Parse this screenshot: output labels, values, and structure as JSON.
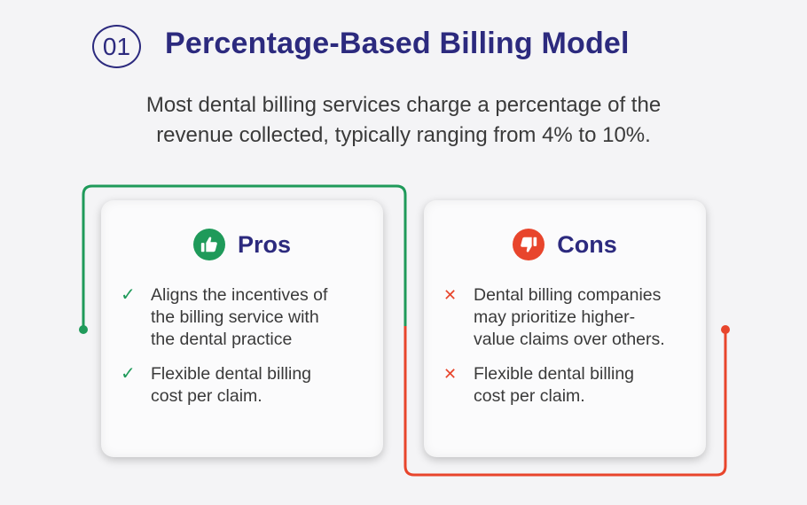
{
  "header": {
    "number": "01",
    "title": "Percentage-Based Billing Model"
  },
  "intro": {
    "line1": "Most dental billing services charge a percentage of the",
    "line2": "revenue collected, typically ranging from 4% to 10%."
  },
  "pros": {
    "label": "Pros",
    "icon": "thumbs-up-icon",
    "items": [
      [
        "Aligns the incentives of",
        "the billing service with",
        "the dental practice"
      ],
      [
        "Flexible dental billing",
        "cost per claim."
      ]
    ]
  },
  "cons": {
    "label": "Cons",
    "icon": "thumbs-down-icon",
    "items": [
      [
        "Dental billing companies",
        "may prioritize higher-",
        "value claims over others."
      ],
      [
        "Flexible dental billing",
        "cost per claim."
      ]
    ]
  },
  "colors": {
    "title": "#2c2a7e",
    "pros_accent": "#1f9a5a",
    "cons_accent": "#e8452c",
    "body_text": "#3a3a3a"
  }
}
